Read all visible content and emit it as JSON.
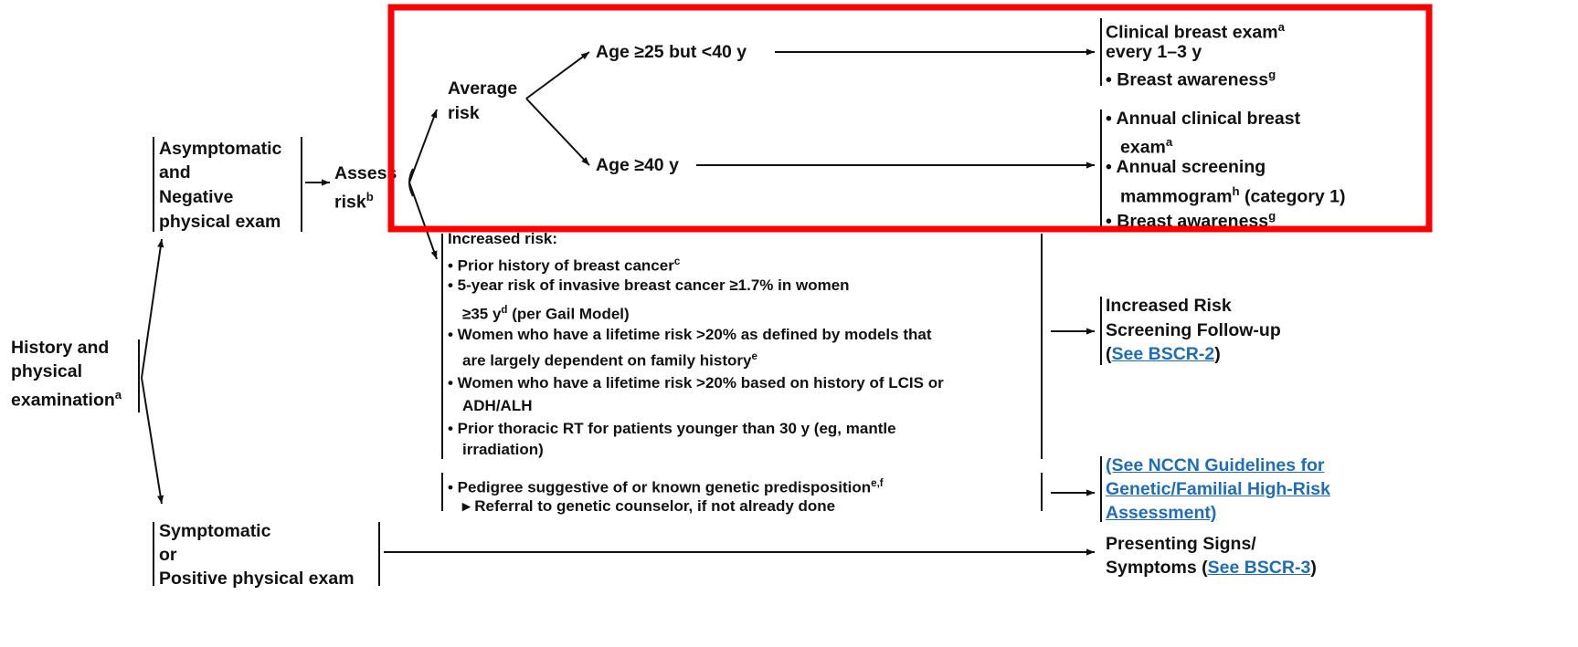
{
  "nodes": {
    "history": {
      "lines": [
        {
          "t": "History and"
        },
        {
          "t": "physical"
        },
        {
          "t": "examination",
          "sup": "a"
        }
      ]
    },
    "asymptomatic": {
      "lines": [
        {
          "t": "Asymptomatic"
        },
        {
          "t": "and"
        },
        {
          "t": "Negative"
        },
        {
          "t": "physical exam"
        }
      ]
    },
    "assess": {
      "lines": [
        {
          "t": "Assess"
        },
        {
          "t": "risk",
          "sup": "b"
        }
      ]
    },
    "average": {
      "lines": [
        {
          "t": "Average"
        },
        {
          "t": "risk"
        }
      ]
    },
    "age25": {
      "lines": [
        {
          "t": "Age ≥25 but <40 y"
        }
      ]
    },
    "age40": {
      "lines": [
        {
          "t": "Age ≥40 y"
        }
      ]
    },
    "result25": {
      "lines": [
        {
          "t": "Clinical breast exam",
          "sup": "a"
        },
        {
          "t": "every 1–3 y"
        },
        {
          "t": "• Breast awareness",
          "sup": "g"
        }
      ]
    },
    "result40": {
      "lines": [
        {
          "t": "• Annual clinical breast"
        },
        {
          "t": "exam",
          "sup": "a"
        },
        {
          "t": "• Annual screening"
        },
        {
          "t": "mammogram",
          "sup": "h",
          "after": " (category 1)"
        },
        {
          "t": "• Breast awareness",
          "sup": "g"
        }
      ]
    },
    "increased": {
      "lines": [
        {
          "t": "Increased risk:"
        },
        {
          "t": "• Prior history of breast cancer",
          "sup": "c"
        },
        {
          "t": "• 5-year risk of invasive breast cancer ≥1.7% in women"
        },
        {
          "t": "≥35 y",
          "sup": "d",
          "after": " (per Gail Model)"
        },
        {
          "t": "• Women who have a lifetime risk >20% as defined by models that"
        },
        {
          "t": "are largely dependent on family history",
          "sup": "e"
        },
        {
          "t": "• Women who have a lifetime risk >20% based on history of LCIS or"
        },
        {
          "t": "ADH/ALH"
        },
        {
          "t": "• Prior thoracic RT for patients younger than 30 y (eg, mantle"
        },
        {
          "t": "irradiation)"
        }
      ]
    },
    "followup": {
      "lines": [
        {
          "t": "Increased Risk"
        },
        {
          "t": "Screening Follow-up"
        },
        {
          "t": "(",
          "link": "See BSCR-2",
          "after": ")"
        }
      ]
    },
    "pedigree": {
      "lines": [
        {
          "t": "• Pedigree suggestive of or known genetic predisposition",
          "sup": "e,f"
        },
        {
          "t": "▸ Referral to genetic counselor, if not already done"
        }
      ]
    },
    "nccn": {
      "lines": [
        {
          "link": "(See NCCN Guidelines for"
        },
        {
          "link": "Genetic/Familial High-Risk"
        },
        {
          "link": "Assessment)"
        }
      ]
    },
    "symptomatic": {
      "lines": [
        {
          "t": "Symptomatic"
        },
        {
          "t": "or"
        },
        {
          "t": "Positive physical exam"
        }
      ]
    },
    "presenting": {
      "lines": [
        {
          "t": "Presenting Signs/"
        },
        {
          "t": "Symptoms (",
          "link": "See BSCR-3",
          "after": ")"
        }
      ]
    }
  }
}
